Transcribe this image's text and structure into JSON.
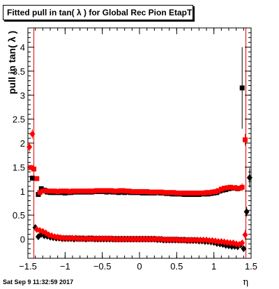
{
  "title": "Fitted pull in tan( λ ) for Global Rec Pion EtapT",
  "datestamp": "Sat Sep  9 11:32:59 2017",
  "chart_data": {
    "type": "scatter",
    "title": "Fitted pull in tan( λ ) for Global Rec Pion EtapT",
    "xlabel": "η",
    "ylabel": "pull in tan( λ )",
    "xlim": [
      -1.5,
      1.5
    ],
    "ylim": [
      -0.4,
      4.4
    ],
    "xticks": [
      "−1.5",
      "−1",
      "−0.5",
      "0",
      "0.5",
      "1",
      "1.5"
    ],
    "yticks": [
      "0",
      "0.5",
      "1",
      "1.5",
      "2",
      "2.5",
      "3",
      "3.5",
      "4"
    ],
    "grid": false,
    "reference_lines_x": [
      -1.42,
      1.43
    ],
    "series": [
      {
        "marker": "square",
        "color": "#000000",
        "x": [
          -1.44,
          -1.36,
          -1.32,
          -1.28,
          -1.24,
          -1.2,
          -1.16,
          -1.12,
          -1.08,
          -1.04,
          -1.0,
          -0.96,
          -0.92,
          -0.88,
          -0.84,
          -0.8,
          -0.76,
          -0.72,
          -0.68,
          -0.64,
          -0.6,
          -0.56,
          -0.52,
          -0.48,
          -0.44,
          -0.4,
          -0.36,
          -0.32,
          -0.28,
          -0.24,
          -0.2,
          -0.16,
          -0.12,
          -0.08,
          -0.04,
          0.0,
          0.04,
          0.08,
          0.12,
          0.16,
          0.2,
          0.24,
          0.28,
          0.32,
          0.36,
          0.4,
          0.44,
          0.48,
          0.52,
          0.56,
          0.6,
          0.64,
          0.68,
          0.72,
          0.76,
          0.8,
          0.84,
          0.88,
          0.92,
          0.96,
          1.0,
          1.04,
          1.08,
          1.12,
          1.16,
          1.2,
          1.24,
          1.28,
          1.32,
          1.38
        ],
        "y": [
          1.27,
          0.93,
          1.05,
          1.02,
          0.98,
          0.97,
          0.97,
          0.97,
          0.97,
          0.97,
          0.96,
          0.97,
          0.97,
          0.98,
          0.98,
          0.98,
          0.98,
          0.98,
          0.98,
          0.98,
          0.99,
          0.99,
          0.99,
          0.99,
          0.98,
          0.99,
          0.98,
          0.98,
          0.97,
          0.98,
          0.97,
          0.98,
          0.97,
          0.97,
          0.97,
          0.97,
          0.96,
          0.96,
          0.96,
          0.96,
          0.96,
          0.97,
          0.96,
          0.96,
          0.95,
          0.95,
          0.94,
          0.94,
          0.94,
          0.94,
          0.93,
          0.93,
          0.93,
          0.93,
          0.93,
          0.93,
          0.94,
          0.94,
          0.94,
          0.95,
          0.96,
          0.97,
          1.0,
          1.02,
          1.03,
          1.05,
          1.06,
          1.07,
          1.05,
          3.15
        ],
        "err": [
          0.05,
          0.05,
          0.02,
          0.02,
          0.02,
          0.02,
          0.02,
          0.02,
          0.02,
          0.02,
          0.02,
          0.02,
          0.02,
          0.02,
          0.02,
          0.02,
          0.02,
          0.02,
          0.02,
          0.02,
          0.02,
          0.02,
          0.02,
          0.02,
          0.02,
          0.02,
          0.02,
          0.02,
          0.02,
          0.02,
          0.02,
          0.02,
          0.02,
          0.02,
          0.02,
          0.02,
          0.02,
          0.02,
          0.02,
          0.02,
          0.02,
          0.02,
          0.02,
          0.02,
          0.02,
          0.02,
          0.02,
          0.02,
          0.02,
          0.02,
          0.02,
          0.02,
          0.02,
          0.02,
          0.02,
          0.02,
          0.02,
          0.02,
          0.02,
          0.02,
          0.02,
          0.02,
          0.02,
          0.02,
          0.02,
          0.02,
          0.02,
          0.03,
          0.05,
          0.85
        ]
      },
      {
        "marker": "square",
        "color": "#ff0000",
        "x": [
          -1.46,
          -1.42,
          -1.38,
          -1.34,
          -1.3,
          -1.26,
          -1.22,
          -1.18,
          -1.14,
          -1.1,
          -1.06,
          -1.02,
          -0.98,
          -0.94,
          -0.9,
          -0.86,
          -0.82,
          -0.78,
          -0.74,
          -0.7,
          -0.66,
          -0.62,
          -0.58,
          -0.54,
          -0.5,
          -0.46,
          -0.42,
          -0.38,
          -0.34,
          -0.3,
          -0.26,
          -0.22,
          -0.18,
          -0.14,
          -0.1,
          -0.06,
          -0.02,
          0.02,
          0.06,
          0.1,
          0.14,
          0.18,
          0.22,
          0.26,
          0.3,
          0.34,
          0.38,
          0.42,
          0.46,
          0.5,
          0.54,
          0.58,
          0.62,
          0.66,
          0.7,
          0.74,
          0.78,
          0.82,
          0.86,
          0.9,
          0.94,
          0.98,
          1.02,
          1.06,
          1.1,
          1.14,
          1.18,
          1.22,
          1.26,
          1.3,
          1.34,
          1.38,
          1.42
        ],
        "y": [
          1.49,
          1.46,
          1.26,
          0.97,
          1.0,
          1.01,
          1.0,
          1.0,
          1.0,
          0.99,
          1.0,
          1.0,
          1.0,
          0.99,
          1.0,
          1.0,
          1.0,
          1.0,
          1.0,
          1.0,
          1.0,
          1.0,
          1.01,
          1.01,
          1.01,
          1.01,
          1.01,
          1.01,
          1.0,
          1.0,
          1.01,
          1.01,
          1.0,
          1.0,
          0.99,
          0.99,
          0.99,
          0.99,
          0.99,
          0.99,
          0.98,
          0.98,
          0.98,
          0.98,
          0.98,
          0.97,
          0.97,
          0.97,
          0.97,
          0.96,
          0.96,
          0.96,
          0.96,
          0.96,
          0.96,
          0.96,
          0.96,
          0.96,
          0.96,
          0.97,
          0.97,
          0.98,
          0.99,
          1.01,
          1.04,
          1.06,
          1.07,
          1.08,
          1.07,
          1.06,
          1.06,
          1.08,
          2.07
        ],
        "err": [
          0.05,
          0.05,
          0.05,
          0.03,
          0.02,
          0.02,
          0.02,
          0.02,
          0.02,
          0.02,
          0.02,
          0.02,
          0.02,
          0.02,
          0.02,
          0.02,
          0.02,
          0.02,
          0.02,
          0.02,
          0.02,
          0.02,
          0.02,
          0.02,
          0.02,
          0.02,
          0.02,
          0.02,
          0.02,
          0.02,
          0.02,
          0.02,
          0.02,
          0.02,
          0.02,
          0.02,
          0.02,
          0.02,
          0.02,
          0.02,
          0.02,
          0.02,
          0.02,
          0.02,
          0.02,
          0.02,
          0.02,
          0.02,
          0.02,
          0.02,
          0.02,
          0.02,
          0.02,
          0.02,
          0.02,
          0.02,
          0.02,
          0.02,
          0.02,
          0.02,
          0.02,
          0.02,
          0.02,
          0.02,
          0.02,
          0.02,
          0.02,
          0.02,
          0.03,
          0.04,
          0.05,
          0.08,
          0.12
        ]
      },
      {
        "marker": "diamond",
        "color": "#000000",
        "x": [
          -1.4,
          -1.36,
          -1.32,
          -1.28,
          -1.24,
          -1.2,
          -1.16,
          -1.12,
          -1.08,
          -1.04,
          -1.0,
          -0.96,
          -0.92,
          -0.88,
          -0.84,
          -0.8,
          -0.76,
          -0.72,
          -0.68,
          -0.64,
          -0.6,
          -0.56,
          -0.52,
          -0.48,
          -0.44,
          -0.4,
          -0.36,
          -0.32,
          -0.28,
          -0.24,
          -0.2,
          -0.16,
          -0.12,
          -0.08,
          -0.04,
          0.0,
          0.04,
          0.08,
          0.12,
          0.16,
          0.2,
          0.24,
          0.28,
          0.32,
          0.36,
          0.4,
          0.44,
          0.48,
          0.52,
          0.56,
          0.6,
          0.64,
          0.68,
          0.72,
          0.76,
          0.8,
          0.84,
          0.88,
          0.92,
          0.96,
          1.0,
          1.04,
          1.08,
          1.12,
          1.16,
          1.2,
          1.24,
          1.28,
          1.32,
          1.36,
          1.4,
          1.44,
          1.48
        ],
        "y": [
          0.24,
          0.05,
          0.1,
          0.07,
          0.06,
          0.04,
          0.03,
          0.02,
          0.02,
          0.01,
          0.01,
          0.01,
          0.01,
          0.0,
          0.01,
          0.01,
          0.01,
          0.0,
          0.01,
          0.01,
          0.0,
          0.0,
          0.0,
          0.0,
          0.0,
          0.0,
          0.0,
          0.0,
          0.0,
          0.0,
          0.0,
          0.0,
          0.0,
          0.0,
          0.0,
          0.0,
          0.0,
          0.0,
          0.0,
          0.0,
          0.0,
          -0.01,
          -0.01,
          -0.02,
          -0.02,
          -0.02,
          -0.02,
          -0.02,
          -0.02,
          -0.02,
          -0.02,
          -0.03,
          -0.03,
          -0.03,
          -0.03,
          -0.04,
          -0.04,
          -0.05,
          -0.05,
          -0.06,
          -0.07,
          -0.09,
          -0.1,
          -0.11,
          -0.13,
          -0.14,
          -0.15,
          -0.15,
          -0.16,
          -0.12,
          -0.2,
          0.57,
          1.28
        ],
        "err": [
          0.03,
          0.03,
          0.02,
          0.01,
          0.01,
          0.01,
          0.01,
          0.01,
          0.01,
          0.01,
          0.01,
          0.01,
          0.01,
          0.01,
          0.01,
          0.01,
          0.01,
          0.01,
          0.01,
          0.01,
          0.01,
          0.01,
          0.01,
          0.01,
          0.01,
          0.01,
          0.01,
          0.01,
          0.01,
          0.01,
          0.01,
          0.01,
          0.01,
          0.01,
          0.01,
          0.01,
          0.01,
          0.01,
          0.01,
          0.01,
          0.01,
          0.01,
          0.01,
          0.01,
          0.01,
          0.01,
          0.01,
          0.01,
          0.01,
          0.01,
          0.01,
          0.01,
          0.01,
          0.01,
          0.01,
          0.01,
          0.01,
          0.01,
          0.01,
          0.01,
          0.01,
          0.01,
          0.01,
          0.01,
          0.01,
          0.01,
          0.01,
          0.02,
          0.02,
          0.03,
          0.05,
          0.1,
          0.2
        ]
      },
      {
        "marker": "diamond",
        "color": "#ff0000",
        "x": [
          -1.48,
          -1.44,
          -1.38,
          -1.34,
          -1.3,
          -1.26,
          -1.22,
          -1.18,
          -1.14,
          -1.1,
          -1.06,
          -1.02,
          -0.98,
          -0.94,
          -0.9,
          -0.86,
          -0.82,
          -0.78,
          -0.74,
          -0.7,
          -0.66,
          -0.62,
          -0.58,
          -0.54,
          -0.5,
          -0.46,
          -0.42,
          -0.38,
          -0.34,
          -0.3,
          -0.26,
          -0.22,
          -0.18,
          -0.14,
          -0.1,
          -0.06,
          -0.02,
          0.02,
          0.06,
          0.1,
          0.14,
          0.18,
          0.22,
          0.26,
          0.3,
          0.34,
          0.38,
          0.42,
          0.46,
          0.5,
          0.54,
          0.58,
          0.62,
          0.66,
          0.7,
          0.74,
          0.78,
          0.82,
          0.86,
          0.9,
          0.94,
          0.98,
          1.02,
          1.06,
          1.1,
          1.14,
          1.18,
          1.22,
          1.26,
          1.3,
          1.34,
          1.38,
          1.42
        ],
        "y": [
          1.92,
          2.19,
          0.2,
          0.18,
          0.16,
          0.13,
          0.09,
          0.07,
          0.05,
          0.04,
          0.03,
          0.02,
          0.02,
          0.02,
          0.02,
          0.02,
          0.01,
          0.01,
          0.01,
          0.01,
          0.01,
          0.01,
          0.01,
          0.01,
          0.01,
          0.01,
          0.01,
          0.01,
          0.0,
          0.0,
          0.0,
          0.0,
          0.0,
          0.0,
          0.0,
          0.0,
          0.0,
          0.0,
          0.0,
          0.0,
          0.0,
          0.0,
          0.0,
          0.0,
          0.0,
          -0.01,
          -0.01,
          -0.01,
          -0.01,
          -0.01,
          -0.02,
          -0.02,
          -0.02,
          -0.02,
          -0.02,
          -0.02,
          -0.02,
          -0.02,
          -0.02,
          -0.02,
          -0.03,
          -0.03,
          -0.04,
          -0.05,
          -0.05,
          -0.06,
          -0.07,
          -0.08,
          -0.08,
          -0.1,
          -0.11,
          -0.08,
          0.09
        ],
        "err": [
          0.1,
          0.1,
          0.03,
          0.02,
          0.02,
          0.01,
          0.01,
          0.01,
          0.01,
          0.01,
          0.01,
          0.01,
          0.01,
          0.01,
          0.01,
          0.01,
          0.01,
          0.01,
          0.01,
          0.01,
          0.01,
          0.01,
          0.01,
          0.01,
          0.01,
          0.01,
          0.01,
          0.01,
          0.01,
          0.01,
          0.01,
          0.01,
          0.01,
          0.01,
          0.01,
          0.01,
          0.01,
          0.01,
          0.01,
          0.01,
          0.01,
          0.01,
          0.01,
          0.01,
          0.01,
          0.01,
          0.01,
          0.01,
          0.01,
          0.01,
          0.01,
          0.01,
          0.01,
          0.01,
          0.01,
          0.01,
          0.01,
          0.01,
          0.01,
          0.01,
          0.01,
          0.01,
          0.01,
          0.01,
          0.01,
          0.01,
          0.01,
          0.02,
          0.02,
          0.03,
          0.04,
          0.05,
          0.1
        ]
      }
    ]
  }
}
